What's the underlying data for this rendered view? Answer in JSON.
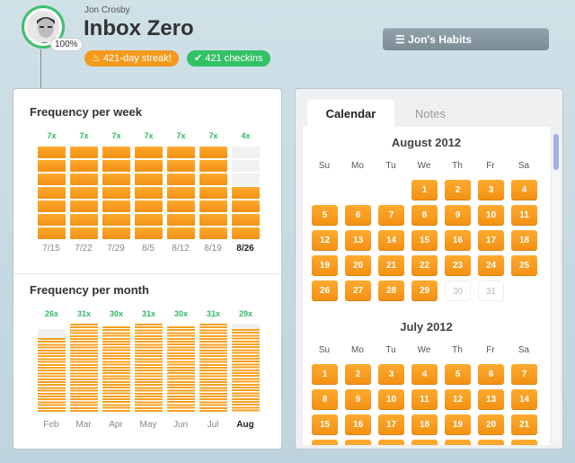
{
  "header": {
    "user_name": "Jon Crosby",
    "avatar_percent": "100%",
    "habit_title": "Inbox Zero",
    "streak_label": "421-day streak!",
    "checkins_label": "421 checkins",
    "habits_button": "Jon's Habits",
    "colors": {
      "orange": "#f39a1d",
      "green": "#33c165"
    }
  },
  "weekly": {
    "title": "Frequency per week",
    "capacity": 7,
    "weeks": [
      {
        "label": "7/15",
        "count_label": "7x",
        "count": 7,
        "current": false
      },
      {
        "label": "7/22",
        "count_label": "7x",
        "count": 7,
        "current": false
      },
      {
        "label": "7/29",
        "count_label": "7x",
        "count": 7,
        "current": false
      },
      {
        "label": "8/5",
        "count_label": "7x",
        "count": 7,
        "current": false
      },
      {
        "label": "8/12",
        "count_label": "7x",
        "count": 7,
        "current": false
      },
      {
        "label": "8/19",
        "count_label": "7x",
        "count": 7,
        "current": false
      },
      {
        "label": "8/26",
        "count_label": "4x",
        "count": 4,
        "current": true
      }
    ]
  },
  "monthly": {
    "title": "Frequency per month",
    "months": [
      {
        "label": "Feb",
        "count_label": "26x",
        "count": 26,
        "days": 29,
        "current": false
      },
      {
        "label": "Mar",
        "count_label": "31x",
        "count": 31,
        "days": 31,
        "current": false
      },
      {
        "label": "Apr",
        "count_label": "30x",
        "count": 30,
        "days": 30,
        "current": false
      },
      {
        "label": "May",
        "count_label": "31x",
        "count": 31,
        "days": 31,
        "current": false
      },
      {
        "label": "Jun",
        "count_label": "30x",
        "count": 30,
        "days": 30,
        "current": false
      },
      {
        "label": "Jul",
        "count_label": "31x",
        "count": 31,
        "days": 31,
        "current": false
      },
      {
        "label": "Aug",
        "count_label": "29x",
        "count": 29,
        "days": 31,
        "current": true
      }
    ]
  },
  "tabs": [
    {
      "label": "Calendar",
      "active": true
    },
    {
      "label": "Notes",
      "active": false
    }
  ],
  "calendar": {
    "weekdays": [
      "Su",
      "Mo",
      "Tu",
      "We",
      "Th",
      "Fr",
      "Sa"
    ],
    "months": [
      {
        "name": "August 2012",
        "start_weekday": 3,
        "days": 31,
        "checked_through": 29,
        "today": 29
      },
      {
        "name": "July 2012",
        "start_weekday": 0,
        "days": 31,
        "checked_through": 31,
        "today": null
      }
    ]
  }
}
